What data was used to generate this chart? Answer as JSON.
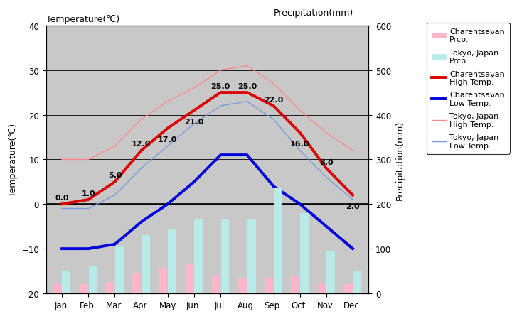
{
  "months": [
    "Jan.",
    "Feb.",
    "Mar.",
    "Apr.",
    "May",
    "Jun.",
    "Jul.",
    "Aug.",
    "Sep.",
    "Oct.",
    "Nov.",
    "Dec."
  ],
  "charentsavan_high": [
    0.0,
    1.0,
    5.0,
    12.0,
    17.0,
    21.0,
    25.0,
    25.0,
    22.0,
    16.0,
    8.0,
    2.0
  ],
  "charentsavan_low": [
    -10.0,
    -10.0,
    -9.0,
    -4.0,
    0.0,
    5.0,
    11.0,
    11.0,
    4.0,
    0.0,
    -5.0,
    -10.0
  ],
  "tokyo_high": [
    10.0,
    10.0,
    13.0,
    19.0,
    23.0,
    26.0,
    30.0,
    31.0,
    27.0,
    21.0,
    16.0,
    12.0
  ],
  "tokyo_low": [
    -1.0,
    -1.0,
    2.0,
    8.0,
    13.0,
    18.0,
    22.0,
    23.0,
    19.0,
    12.0,
    6.0,
    1.0
  ],
  "charentsavan_precip": [
    20.0,
    20.0,
    25.0,
    45.0,
    55.0,
    65.0,
    40.0,
    35.0,
    35.0,
    40.0,
    20.0,
    20.0
  ],
  "tokyo_precip": [
    50.0,
    60.0,
    105.0,
    130.0,
    145.0,
    165.0,
    165.0,
    165.0,
    235.0,
    180.0,
    95.0,
    50.0
  ],
  "temp_ylim_min": -20,
  "temp_ylim_max": 40,
  "precip_ylim_min": 0,
  "precip_ylim_max": 600,
  "temp_ylabel": "Temperature(℃)",
  "precip_ylabel": "Precipitation(mm)",
  "ch_high_color": "#dd0000",
  "ch_low_color": "#0000dd",
  "tok_high_color": "#ff8888",
  "tok_low_color": "#7799dd",
  "ch_precip_color": "#ffb6c8",
  "tok_precip_color": "#b8eaea",
  "bg_color": "#c8c8c8",
  "white": "#ffffff",
  "high_label_offsets_y": [
    1.5,
    1.5,
    1.5,
    1.5,
    -2.5,
    -2.5,
    1.5,
    1.5,
    1.5,
    -2.5,
    1.5,
    -2.5
  ],
  "legend_labels": [
    "Charentsavan\nPrcp.",
    "Tokyo, Japan\nPrcp.",
    "Charentsavan\nHigh Temp.",
    "Charentsavan\nLow Temp.",
    "Tokyo, Japan\nHigh Temp.",
    "Tokyo, Japan\nLow Temp."
  ]
}
